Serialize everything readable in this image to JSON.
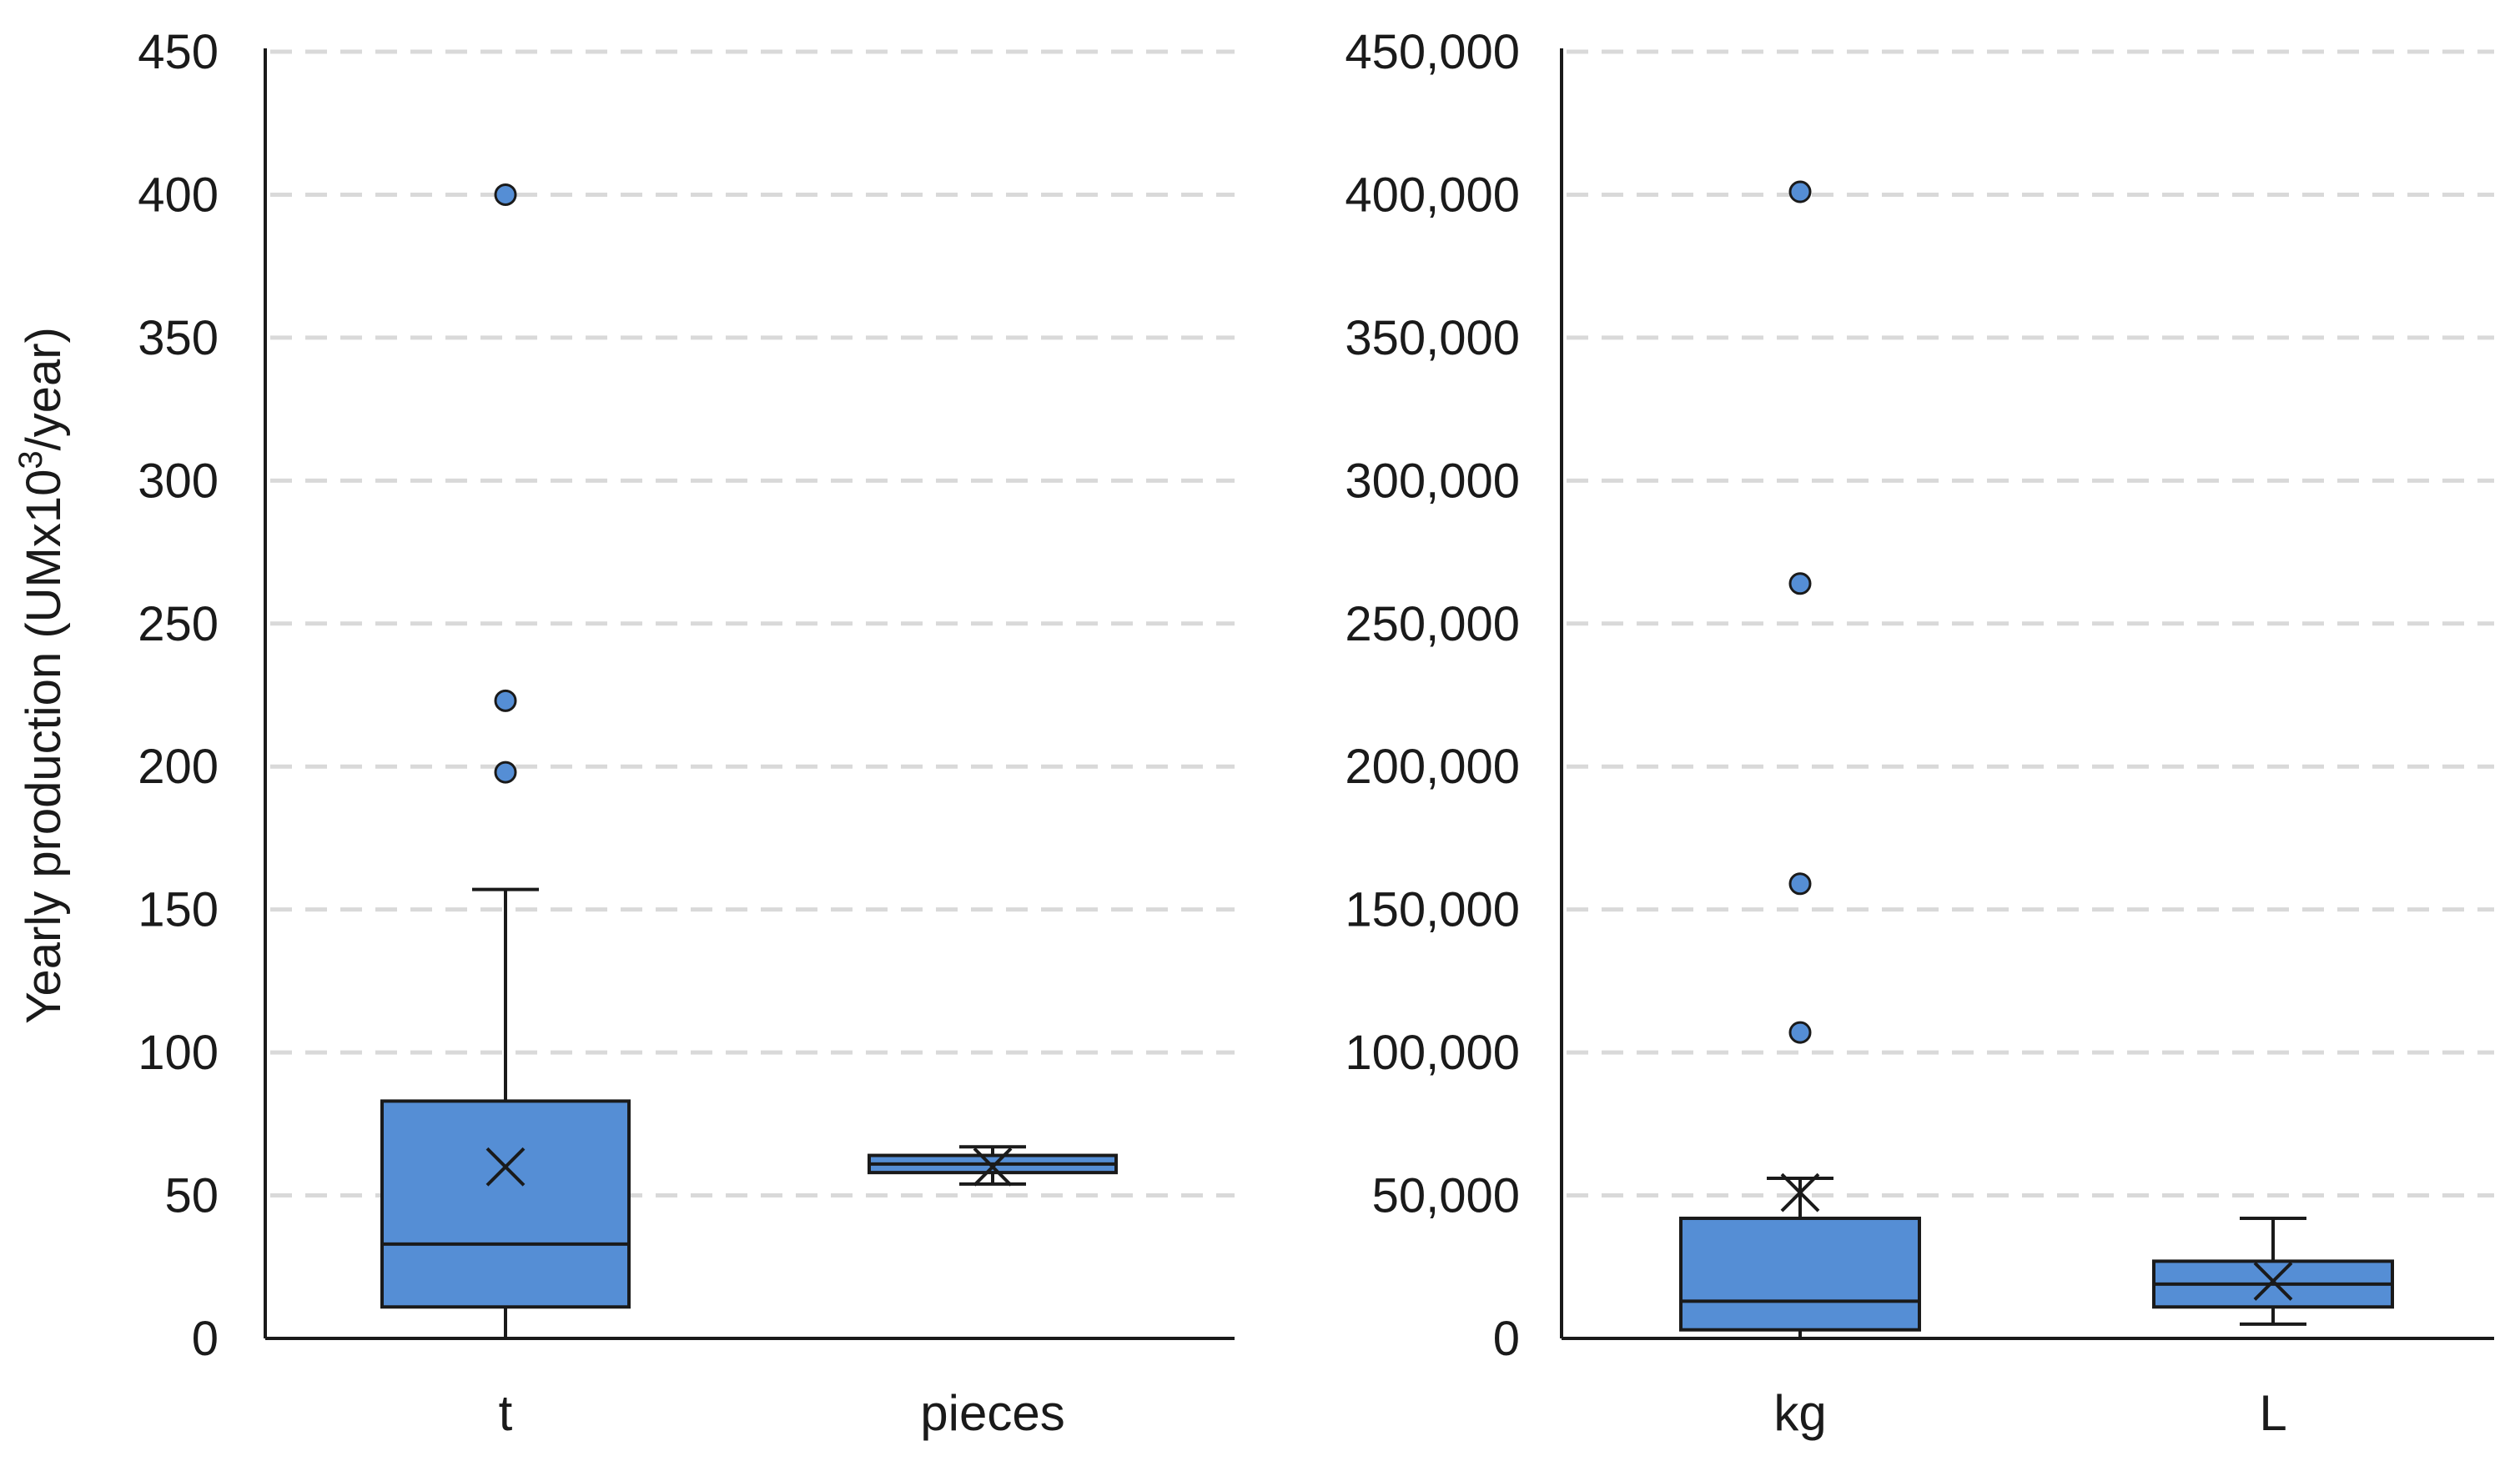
{
  "chart_data": [
    {
      "type": "box",
      "ylabel": "Yearly production (UMx10",
      "ylabel_sup": "3",
      "ylabel_tail": "/year)",
      "ylim": [
        0,
        450
      ],
      "yticks": [
        0,
        50,
        100,
        150,
        200,
        250,
        300,
        350,
        400,
        450
      ],
      "ytick_labels": [
        "0",
        "50",
        "100",
        "150",
        "200",
        "250",
        "300",
        "350",
        "400",
        "450"
      ],
      "grid": true,
      "color": "#558ed5",
      "categories": [
        "t",
        "pieces"
      ],
      "boxes": [
        {
          "name": "t",
          "min": 0,
          "q1": 11,
          "median": 33,
          "q3": 83,
          "max": 157,
          "mean": 60,
          "outliers": [
            198,
            223,
            400
          ]
        },
        {
          "name": "pieces",
          "min": 54,
          "q1": 58,
          "median": 61,
          "q3": 64,
          "max": 67,
          "mean": 60,
          "outliers": []
        }
      ]
    },
    {
      "type": "box",
      "ylim": [
        0,
        450000
      ],
      "yticks": [
        0,
        50000,
        100000,
        150000,
        200000,
        250000,
        300000,
        350000,
        400000,
        450000
      ],
      "ytick_labels": [
        "0",
        "50,000",
        "100,000",
        "150,000",
        "200,000",
        "250,000",
        "300,000",
        "350,000",
        "400,000",
        "450,000"
      ],
      "grid": true,
      "color": "#558ed5",
      "categories": [
        "kg",
        "L"
      ],
      "boxes": [
        {
          "name": "kg",
          "min": 0,
          "q1": 3000,
          "median": 13000,
          "q3": 42000,
          "max": 56000,
          "mean": 51000,
          "outliers": [
            107000,
            159000,
            264000,
            401000
          ]
        },
        {
          "name": "L",
          "min": 5000,
          "q1": 11000,
          "median": 19000,
          "q3": 27000,
          "max": 42000,
          "mean": 20000,
          "outliers": []
        }
      ]
    }
  ]
}
